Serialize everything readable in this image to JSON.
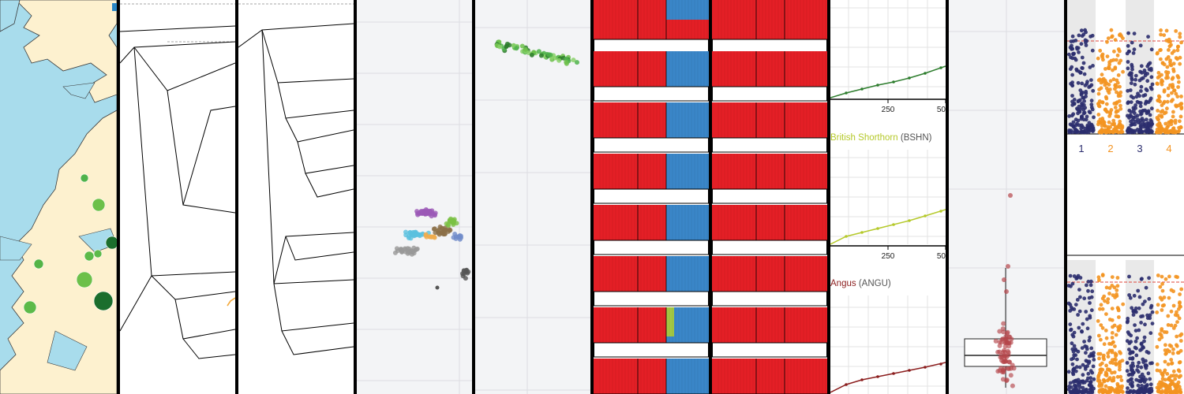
{
  "panels": {
    "map": {
      "colors": {
        "sea": "#a8dcec",
        "land": "#fdf1cf",
        "coast": "#3b3b3b"
      }
    },
    "trees": {
      "edge_color": "#000000",
      "highlight": "#f3a93b"
    },
    "pca_a": {
      "bg": "#f3f4f6"
    },
    "pca_b": {
      "bg": "#f3f4f6"
    },
    "admix": {
      "colors": {
        "red": "#e41f26",
        "blue": "#3a86c8",
        "green": "#a3c843"
      }
    },
    "curves": {
      "labels": [
        {
          "name": "British Shorthorn",
          "code": "(BSHN)",
          "color": "#b5c92a"
        },
        {
          "name": "Angus",
          "code": "(ANGU)",
          "color": "#8b1d1d"
        }
      ],
      "ticks": [
        "250",
        "50"
      ],
      "colors": [
        "#2d7d2d",
        "#b5c92a",
        "#8b1d1d"
      ]
    },
    "boxplot": {
      "point_color": "#b5464b"
    },
    "manhattan": {
      "chromosomes": [
        "1",
        "2",
        "3",
        "4"
      ],
      "colors": {
        "odd": "#2b2d6e",
        "even": "#f39320",
        "threshold": "#e0453a"
      }
    }
  }
}
